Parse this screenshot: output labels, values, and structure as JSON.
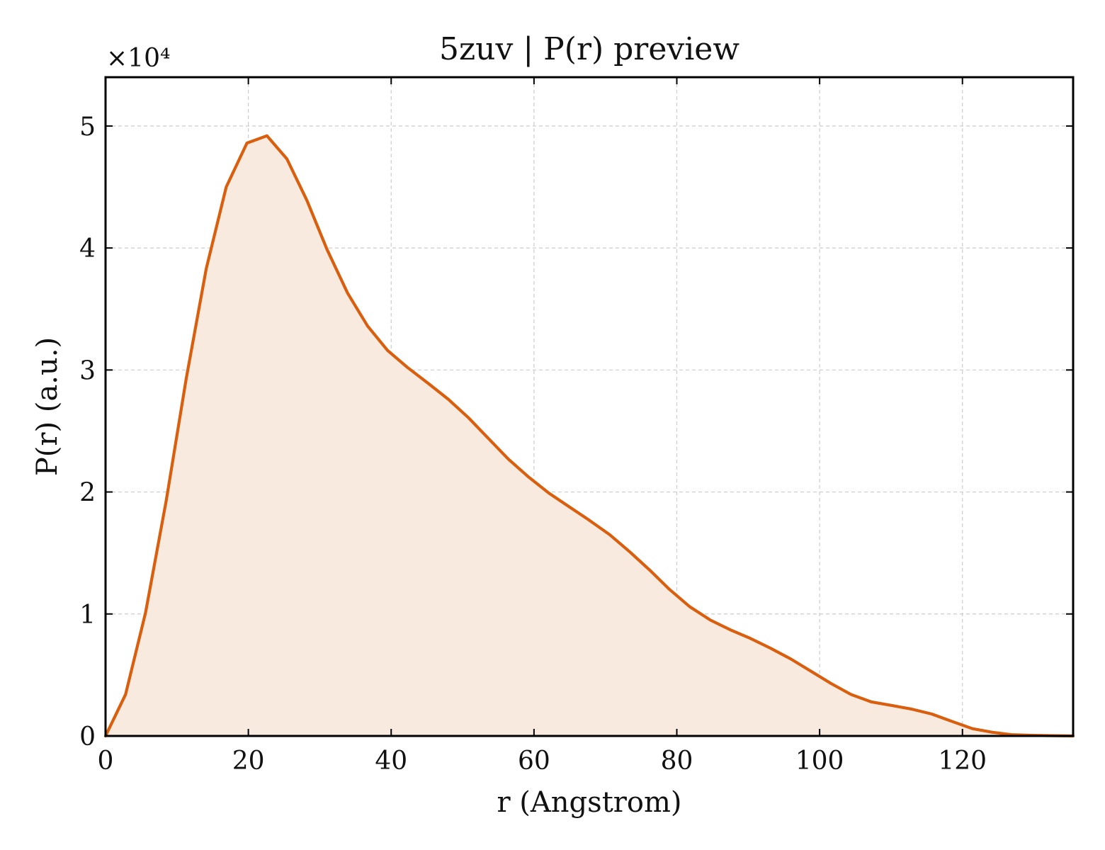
{
  "chart_data": {
    "type": "area",
    "title": "5zuv | P(r) preview",
    "xlabel": "r (Angstrom)",
    "ylabel": "P(r) (a.u.)",
    "y_offset_label": "×10⁴",
    "y_scale_factor": 10000,
    "xlim": [
      0,
      135.5
    ],
    "ylim": [
      0,
      54000
    ],
    "xticks": [
      0,
      20,
      40,
      60,
      80,
      100,
      120
    ],
    "yticks": [
      0,
      10000,
      20000,
      30000,
      40000,
      50000
    ],
    "ytick_labels": [
      "0",
      "1",
      "2",
      "3",
      "4",
      "5"
    ],
    "xtick_labels": [
      "0",
      "20",
      "40",
      "60",
      "80",
      "100",
      "120"
    ],
    "grid": true,
    "legend": "none",
    "colors": {
      "line": "#d95f0e",
      "fill": "#f9eadf",
      "grid": "#cccccc",
      "axes": "#000000"
    },
    "series": [
      {
        "x": [
          0,
          2.8,
          5.6,
          8.5,
          11.3,
          14.1,
          16.9,
          19.8,
          22.6,
          25.4,
          28.2,
          31.0,
          33.9,
          36.7,
          39.5,
          42.3,
          45.2,
          48.0,
          50.8,
          53.6,
          56.4,
          59.3,
          62.1,
          64.9,
          67.7,
          70.6,
          73.4,
          76.2,
          79.0,
          81.8,
          84.7,
          87.5,
          90.3,
          93.1,
          96.0,
          98.8,
          101.6,
          104.4,
          107.2,
          110.1,
          112.9,
          115.7,
          118.5,
          121.4,
          124.2,
          127.0,
          129.8,
          132.6,
          135.5
        ],
        "y": [
          0,
          3400,
          10100,
          19300,
          29300,
          38300,
          45000,
          48600,
          49200,
          47300,
          43900,
          39900,
          36300,
          33600,
          31600,
          30200,
          28900,
          27600,
          26100,
          24400,
          22700,
          21200,
          19900,
          18800,
          17700,
          16500,
          15100,
          13600,
          12000,
          10600,
          9500,
          8700,
          8000,
          7200,
          6300,
          5300,
          4300,
          3400,
          2800,
          2500,
          2200,
          1800,
          1200,
          600,
          300,
          100,
          50,
          20,
          0
        ]
      }
    ]
  }
}
